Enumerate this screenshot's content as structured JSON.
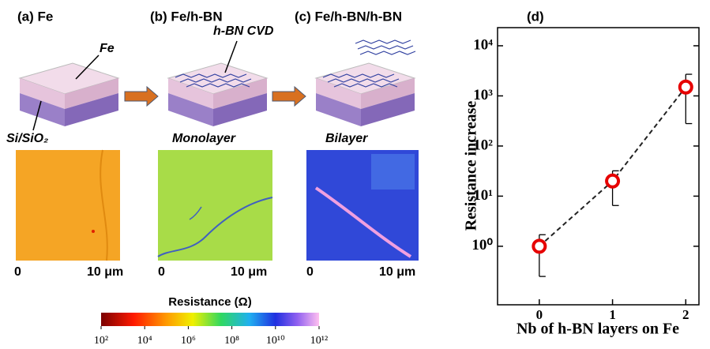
{
  "panels": [
    {
      "label": "(a) Fe",
      "annotations": [
        "Fe",
        "Si/SiO₂"
      ],
      "scale": [
        "0",
        "10 μm"
      ]
    },
    {
      "label": "(b) Fe/h-BN",
      "annotations": [
        "h-BN CVD",
        "Monolayer"
      ],
      "scale": [
        "0",
        "10 μm"
      ]
    },
    {
      "label": "(c) Fe/h-BN/h-BN",
      "annotations": [
        "Bilayer"
      ],
      "scale": [
        "0",
        "10 μm"
      ]
    }
  ],
  "colorbar": {
    "title": "Resistance (Ω)",
    "lim": [
      100,
      1000000000000
    ],
    "ticks": [
      {
        "value": 100,
        "label": "10²"
      },
      {
        "value": 10000,
        "label": "10⁴"
      },
      {
        "value": 1000000,
        "label": "10⁶"
      },
      {
        "value": 100000000,
        "label": "10⁸"
      },
      {
        "value": 10000000000,
        "label": "10¹⁰"
      },
      {
        "value": 1000000000000,
        "label": "10¹²"
      }
    ]
  },
  "chart_data": {
    "type": "scatter",
    "title": "(d)",
    "x_label": "Nb of h-BN layers on Fe",
    "y_label": "Resistance increase",
    "x": [
      0,
      1,
      2
    ],
    "values": [
      1,
      20,
      1500
    ],
    "error_lower": [
      0.25,
      6.5,
      280
    ],
    "error_upper": [
      1.7,
      32,
      2700
    ],
    "color": "#e60000",
    "log_y": true,
    "xlim": [
      -0.57,
      2.18
    ],
    "xticks": [
      0,
      1,
      2
    ],
    "ylim": [
      0.068,
      23000
    ],
    "yticks": [
      {
        "value": 1,
        "label": "10⁰"
      },
      {
        "value": 10,
        "label": "10¹"
      },
      {
        "value": 100,
        "label": "10²"
      },
      {
        "value": 1000,
        "label": "10³"
      },
      {
        "value": 10000,
        "label": "10⁴"
      }
    ]
  }
}
